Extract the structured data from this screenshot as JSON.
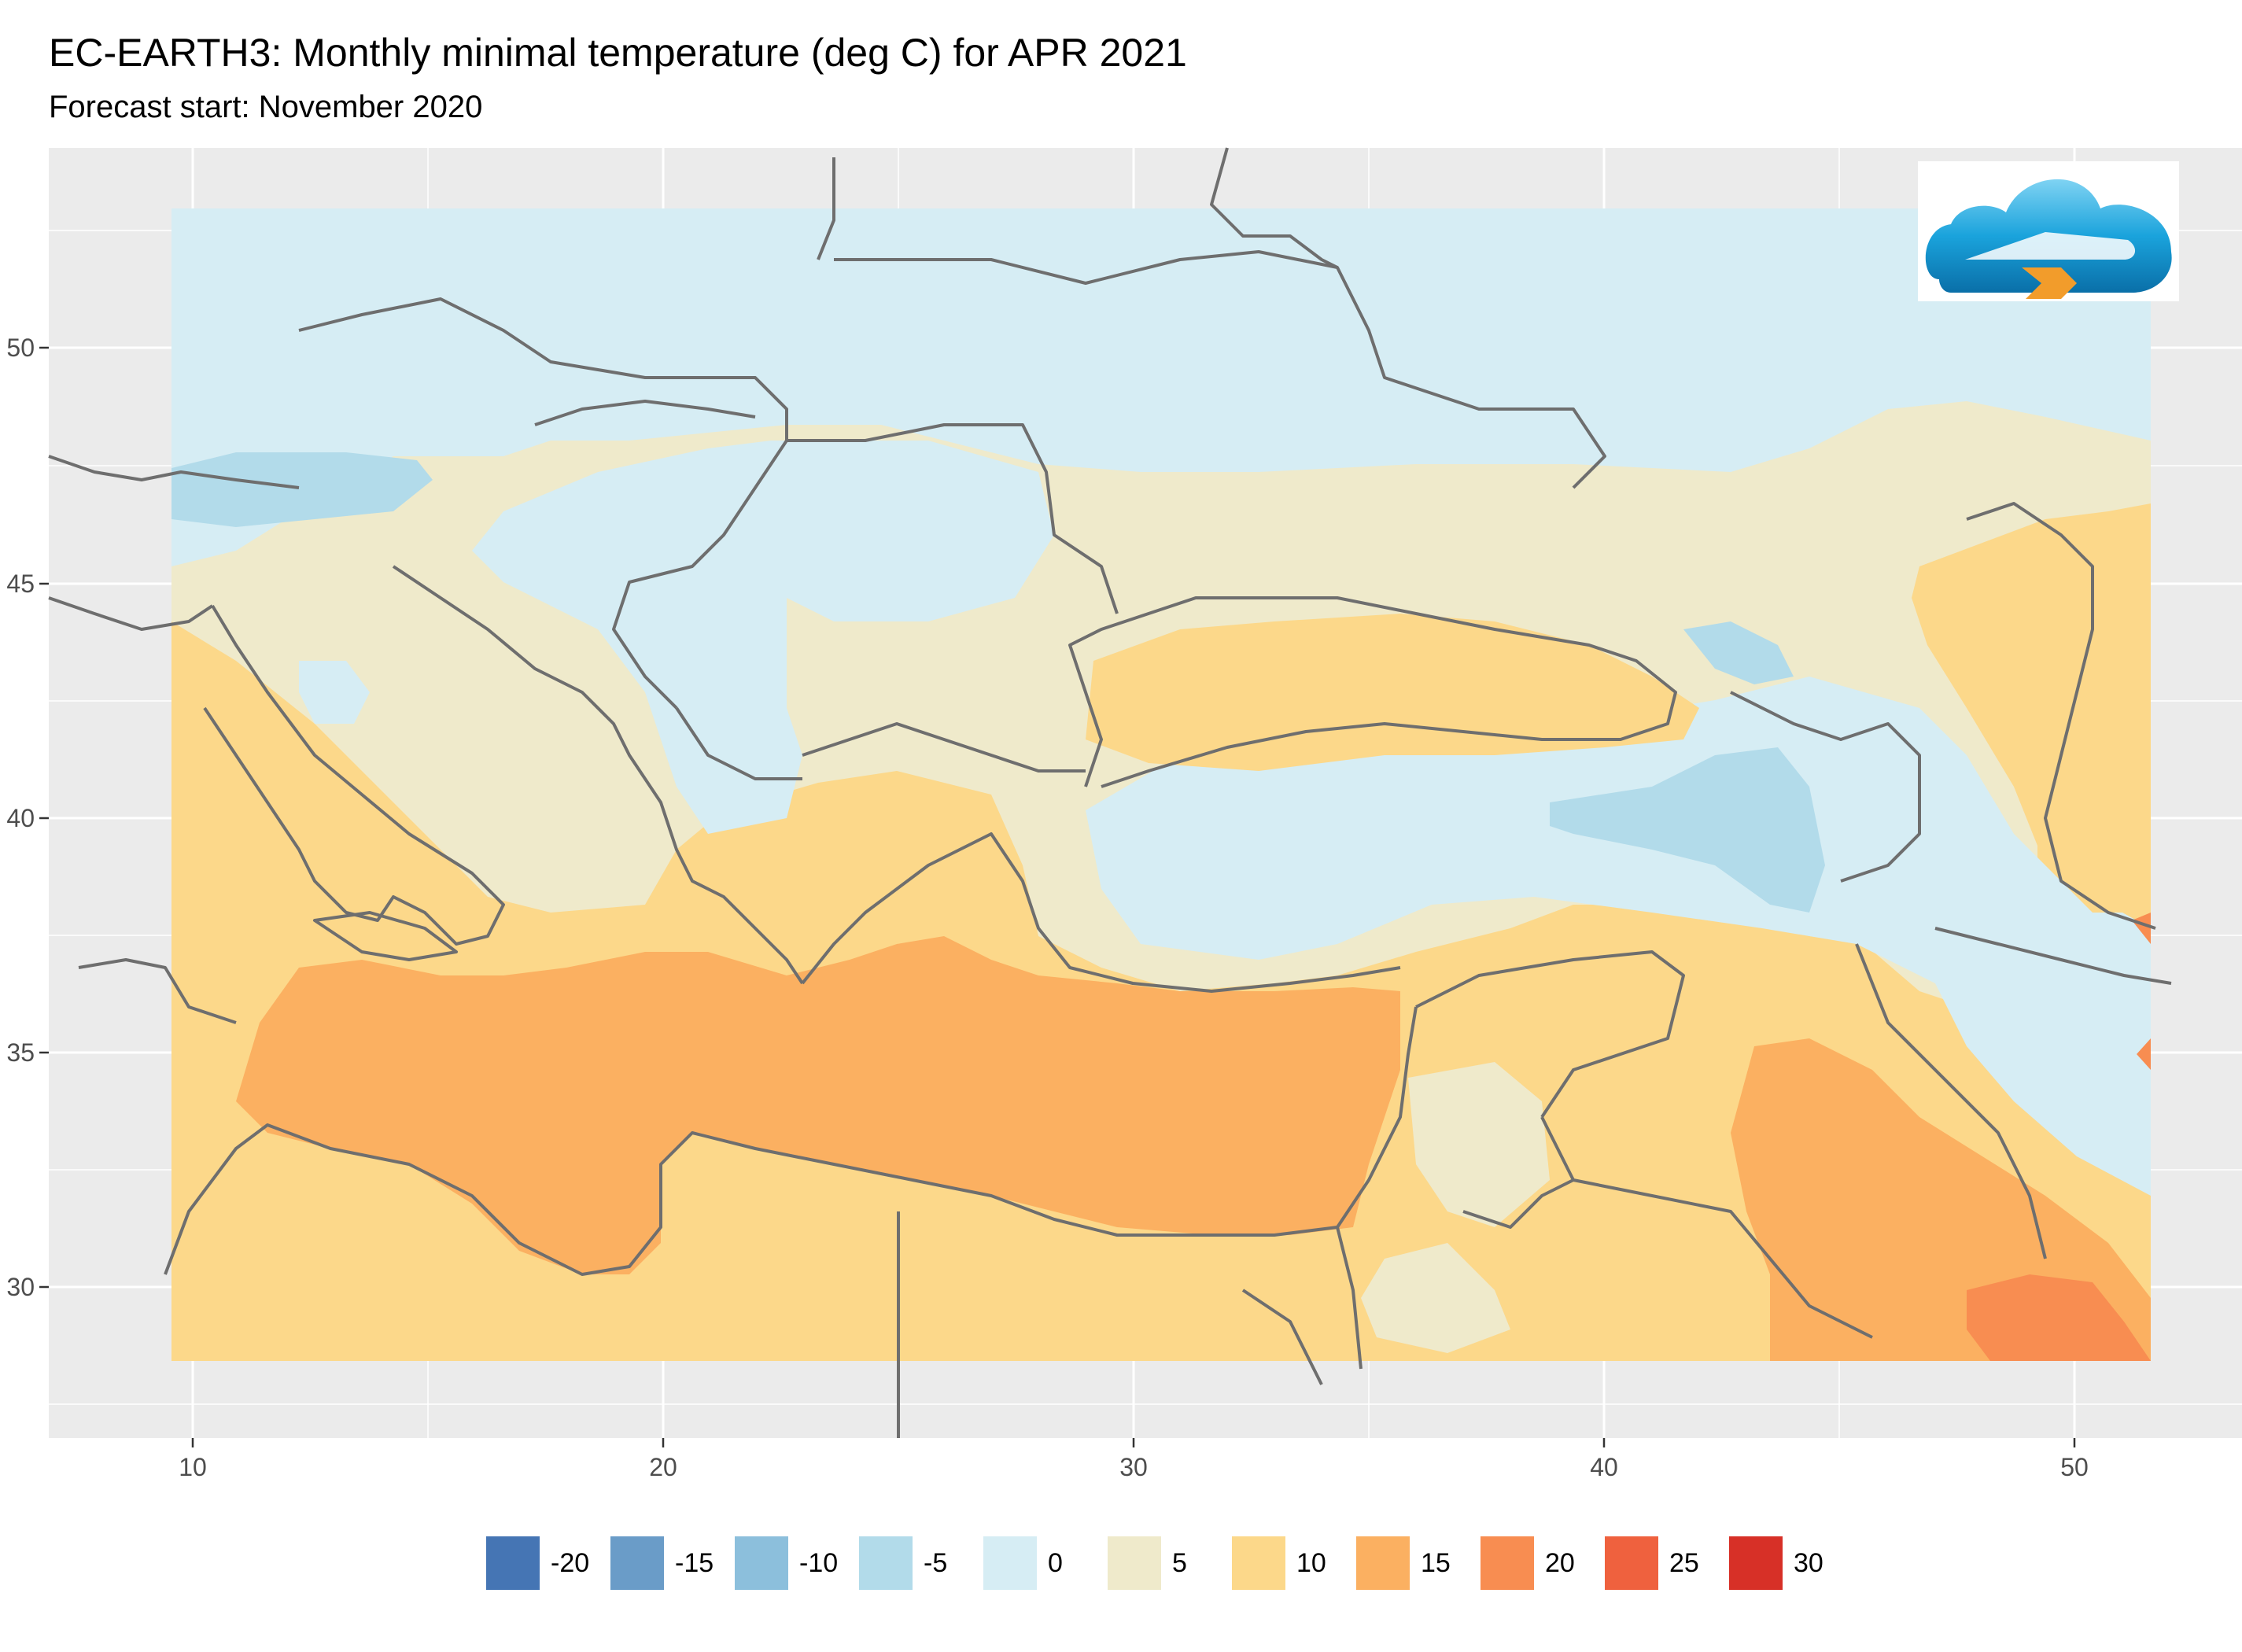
{
  "title": "EC-EARTH3: Monthly minimal temperature (deg C) for APR 2021",
  "subtitle": "Forecast start: November 2020",
  "logo": {
    "icon": "cloud-logo-icon"
  },
  "axes": {
    "x_ticks": [
      "10",
      "20",
      "30",
      "40",
      "50"
    ],
    "y_ticks": [
      "50",
      "45",
      "40",
      "35",
      "30"
    ]
  },
  "legend": [
    {
      "label": "-20",
      "color": "#4575b4"
    },
    {
      "label": "-15",
      "color": "#6a9cc8"
    },
    {
      "label": "-10",
      "color": "#8cbfdc"
    },
    {
      "label": "-5",
      "color": "#b2dbea"
    },
    {
      "label": "0",
      "color": "#d6edf4"
    },
    {
      "label": "5",
      "color": "#efeacb"
    },
    {
      "label": "10",
      "color": "#fcd88a"
    },
    {
      "label": "15",
      "color": "#fbb061"
    },
    {
      "label": "20",
      "color": "#f88d51"
    },
    {
      "label": "25",
      "color": "#ef613e"
    },
    {
      "label": "30",
      "color": "#d73027"
    }
  ],
  "colors": {
    "panel_bg": "#ebebeb",
    "grid": "#ffffff",
    "border": "#6e6e6e"
  }
}
